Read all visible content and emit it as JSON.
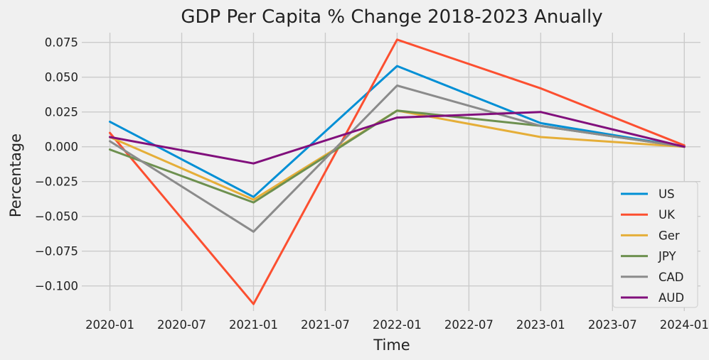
{
  "chart_data": {
    "type": "line",
    "title": "GDP Per Capita % Change 2018-2023 Anually",
    "xlabel": "Time",
    "ylabel": "Percentage",
    "x": [
      "2020-01",
      "2021-01",
      "2022-01",
      "2023-01",
      "2024-01"
    ],
    "x_ticks": [
      "2020-01",
      "2020-07",
      "2021-01",
      "2021-07",
      "2022-01",
      "2022-07",
      "2023-01",
      "2023-07",
      "2024-01"
    ],
    "y_ticks": [
      "0.075",
      "0.050",
      "0.025",
      "0.000",
      "−0.025",
      "−0.050",
      "−0.075",
      "−0.100"
    ],
    "ylim": [
      -0.118,
      0.082
    ],
    "xlim": [
      "2019-11",
      "2024-03"
    ],
    "grid": true,
    "legend_position": "bottom-right",
    "series": [
      {
        "name": "US",
        "color": "#008fd5",
        "values": [
          0.018,
          -0.036,
          0.058,
          0.017,
          0.0
        ]
      },
      {
        "name": "UK",
        "color": "#fc4f30",
        "values": [
          0.01,
          -0.113,
          0.077,
          0.042,
          0.001
        ]
      },
      {
        "name": "Ger",
        "color": "#e5ae38",
        "values": [
          0.007,
          -0.038,
          0.026,
          0.007,
          0.0
        ]
      },
      {
        "name": "JPY",
        "color": "#6d904f",
        "values": [
          -0.002,
          -0.04,
          0.026,
          0.015,
          0.0
        ]
      },
      {
        "name": "CAD",
        "color": "#8b8b8b",
        "values": [
          0.004,
          -0.061,
          0.044,
          0.015,
          0.0
        ]
      },
      {
        "name": "AUD",
        "color": "#810f7c",
        "values": [
          0.007,
          -0.012,
          0.021,
          0.025,
          0.0
        ]
      }
    ]
  }
}
